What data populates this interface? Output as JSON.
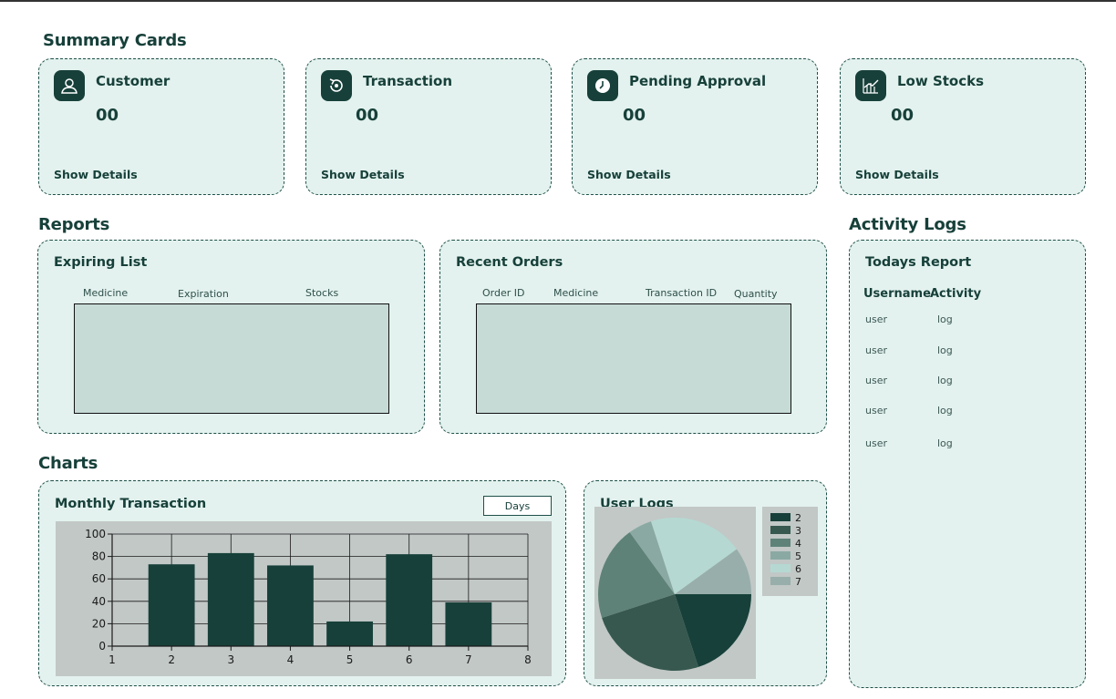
{
  "sections": {
    "summary": "Summary Cards",
    "reports": "Reports",
    "activity": "Activity Logs",
    "charts": "Charts"
  },
  "cards": [
    {
      "title": "Customer",
      "value": "00",
      "link": "Show Details",
      "icon": "user-icon"
    },
    {
      "title": "Transaction",
      "value": "00",
      "link": "Show Details",
      "icon": "refresh-icon"
    },
    {
      "title": "Pending Approval",
      "value": "00",
      "link": "Show Details",
      "icon": "clock-icon"
    },
    {
      "title": "Low Stocks",
      "value": "00",
      "link": "Show Details",
      "icon": "chart-trend-icon"
    }
  ],
  "expiring": {
    "title": "Expiring List",
    "columns": [
      "Medicine",
      "Expiration",
      "Stocks"
    ]
  },
  "orders": {
    "title": "Recent Orders",
    "columns": [
      "Order ID",
      "Medicine",
      "Transaction ID",
      "Quantity"
    ]
  },
  "logs": {
    "title": "Todays Report",
    "headers": [
      "Username",
      "Activity"
    ],
    "rows": [
      {
        "user": "user",
        "activity": "log"
      },
      {
        "user": "user",
        "activity": "log"
      },
      {
        "user": "user",
        "activity": "log"
      },
      {
        "user": "user",
        "activity": "log"
      },
      {
        "user": "user",
        "activity": "log"
      }
    ]
  },
  "monthly": {
    "title": "Monthly Transaction",
    "filter_label": "Days"
  },
  "userlogs": {
    "title": "User Logs"
  },
  "colors": {
    "panel": "#e3f2ee",
    "dark": "#17403a",
    "table": "#c6dbd5",
    "chart_bg": "#c1c8c6"
  },
  "chart_data": [
    {
      "type": "bar",
      "x": [
        2,
        3,
        4,
        5,
        6,
        7
      ],
      "values": [
        73,
        83,
        72,
        22,
        82,
        39
      ],
      "xlim": [
        1,
        8
      ],
      "ylim": [
        0,
        100
      ],
      "xticks": [
        "1",
        "2",
        "3",
        "4",
        "5",
        "6",
        "7",
        "8"
      ],
      "yticks": [
        "0",
        "20",
        "40",
        "60",
        "80",
        "100"
      ],
      "grid": true,
      "color": "#17403a"
    },
    {
      "type": "pie",
      "labels": [
        "2",
        "3",
        "4",
        "5",
        "6",
        "7"
      ],
      "values": [
        20,
        25,
        20,
        5,
        20,
        10
      ],
      "colors": [
        "#17403a",
        "#37584f",
        "#5e8278",
        "#8aa9a3",
        "#b5d9d2",
        "#98aeaa"
      ],
      "legend": "right"
    }
  ]
}
